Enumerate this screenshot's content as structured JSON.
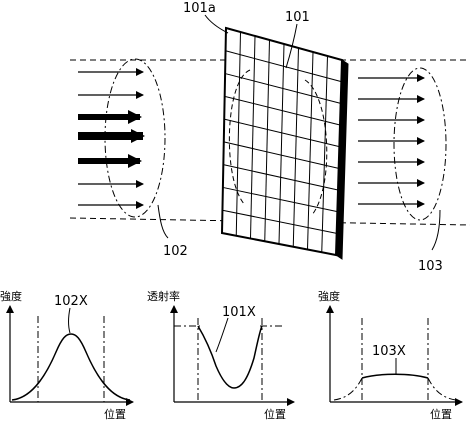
{
  "labels": {
    "panel": "101a",
    "panel_group": "101",
    "incident_beam": "102",
    "output_beam": "103"
  },
  "plots": {
    "incident": {
      "ylabel": "強度",
      "xlabel": "位置",
      "curve_label": "102X"
    },
    "transmittance": {
      "ylabel": "透射率",
      "xlabel": "位置",
      "curve_label": "101X"
    },
    "output": {
      "ylabel": "強度",
      "xlabel": "位置",
      "curve_label": "103X"
    }
  },
  "colors": {
    "ink": "#000000",
    "background": "#ffffff"
  }
}
